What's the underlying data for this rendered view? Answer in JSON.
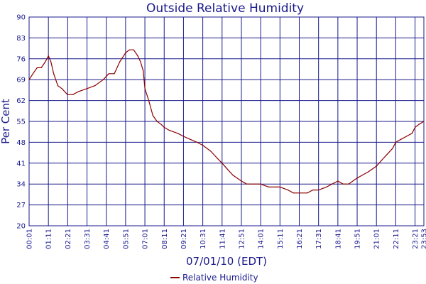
{
  "chart_data": {
    "type": "line",
    "title": "Outside Relative Humidity",
    "xlabel": "07/01/10 (EDT)",
    "ylabel": "Per Cent",
    "ylim": [
      20,
      90
    ],
    "yticks": [
      "20",
      "27",
      "34",
      "41",
      "48",
      "55",
      "62",
      "69",
      "76",
      "83",
      "90"
    ],
    "xlim": [
      "00:01",
      "23:53"
    ],
    "xticks": [
      "00:01",
      "01:11",
      "02:21",
      "03:31",
      "04:41",
      "05:51",
      "07:01",
      "08:11",
      "09:21",
      "10:31",
      "11:41",
      "12:51",
      "14:01",
      "15:11",
      "16:21",
      "17:31",
      "18:41",
      "19:51",
      "21:01",
      "22:11",
      "23:21",
      "23:53"
    ],
    "grid": true,
    "legend": "bottom-center",
    "colors": {
      "line": "#8b0000",
      "grid": "#1a1a8c",
      "text": "#1a1a8c"
    },
    "series": [
      {
        "name": "Relative Humidity",
        "x": [
          "00:01",
          "00:15",
          "00:30",
          "00:45",
          "01:00",
          "01:11",
          "01:20",
          "01:30",
          "01:45",
          "02:00",
          "02:20",
          "02:40",
          "03:00",
          "03:31",
          "04:00",
          "04:30",
          "04:50",
          "05:10",
          "05:30",
          "05:51",
          "06:05",
          "06:20",
          "06:35",
          "06:45",
          "06:55",
          "07:01",
          "07:15",
          "07:30",
          "07:45",
          "08:00",
          "08:11",
          "08:30",
          "09:00",
          "09:21",
          "09:45",
          "10:10",
          "10:31",
          "11:00",
          "11:20",
          "11:41",
          "12:00",
          "12:20",
          "12:51",
          "13:10",
          "13:30",
          "14:01",
          "14:30",
          "15:00",
          "15:11",
          "15:40",
          "16:00",
          "16:21",
          "16:50",
          "17:10",
          "17:31",
          "18:00",
          "18:20",
          "18:41",
          "19:00",
          "19:20",
          "19:51",
          "20:10",
          "20:30",
          "21:01",
          "21:20",
          "21:40",
          "22:00",
          "22:11",
          "22:30",
          "22:50",
          "23:10",
          "23:21",
          "23:35",
          "23:53"
        ],
        "values": [
          69,
          71,
          73,
          73,
          75,
          77,
          75,
          71,
          67,
          66,
          64,
          64,
          65,
          66,
          67,
          69,
          71,
          71,
          75,
          78,
          79,
          79,
          77,
          75,
          72,
          66,
          62,
          57,
          55,
          54,
          53,
          52,
          51,
          50,
          49,
          48,
          47,
          45,
          43,
          41,
          39,
          37,
          35,
          34,
          34,
          34,
          33,
          33,
          33,
          32,
          31,
          31,
          31,
          32,
          32,
          33,
          34,
          35,
          34,
          34,
          36,
          37,
          38,
          40,
          42,
          44,
          46,
          48,
          49,
          50,
          51,
          53,
          54,
          55
        ]
      }
    ]
  }
}
